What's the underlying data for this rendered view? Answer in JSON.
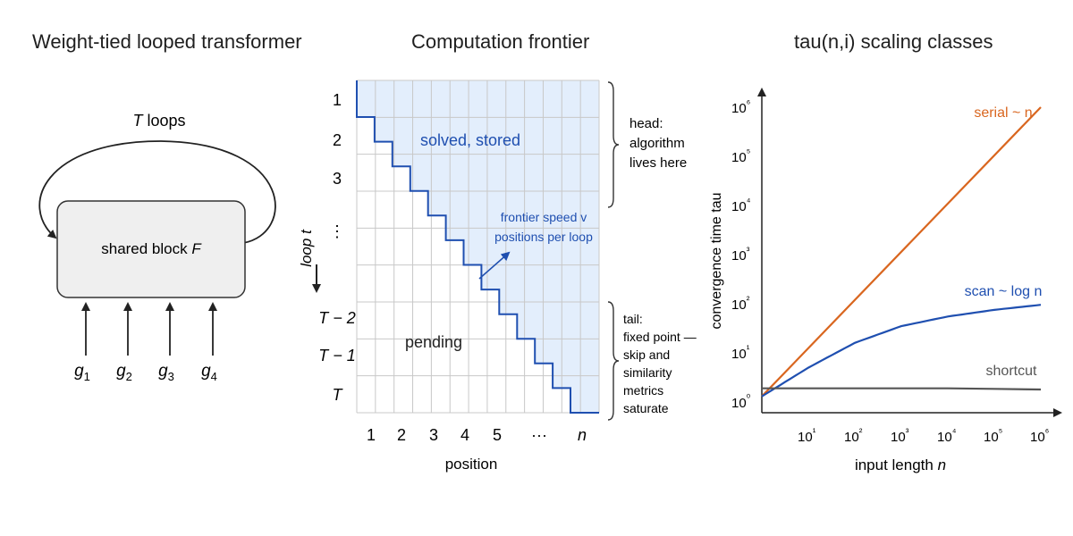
{
  "panel1": {
    "title": "Weight-tied looped transformer",
    "loop_label": "loops",
    "loop_var": "T",
    "block_label": "shared block",
    "block_var": "F",
    "inputs": [
      {
        "base": "g",
        "sub": "1"
      },
      {
        "base": "g",
        "sub": "2"
      },
      {
        "base": "g",
        "sub": "3"
      },
      {
        "base": "g",
        "sub": "4"
      }
    ]
  },
  "panel2": {
    "title": "Computation frontier",
    "solved_label": "solved, stored",
    "pending_label": "pending",
    "speed_label_line1": "frontier speed v",
    "speed_label_line2": "positions per loop",
    "row_labels": [
      "1",
      "2",
      "3",
      "⋮",
      "T − 2",
      "T − 1",
      "T"
    ],
    "col_labels": [
      "1",
      "2",
      "3",
      "4",
      "5",
      "···",
      "n"
    ],
    "y_axis_label": "loop t",
    "x_axis_label": "position",
    "head_lines": [
      "head:",
      "algorithm",
      "lives here"
    ],
    "tail_lines": [
      "tail:",
      "fixed point —",
      "skip and",
      "similarity",
      "metrics",
      "saturate"
    ],
    "colors": {
      "solved_fill": "#e3eefc",
      "frontier": "#1f4fb0",
      "grid": "#c8c8c8"
    }
  },
  "panel3": {
    "title": "tau(n,i) scaling classes",
    "chart_data": {
      "type": "line",
      "title": "tau(n,i) scaling classes",
      "xlabel": "input length n",
      "ylabel": "convergence time tau",
      "x_scale": "log",
      "y_scale": "log",
      "xlim": [
        1,
        1000000
      ],
      "ylim": [
        1,
        1000000
      ],
      "x_ticks": [
        "10¹",
        "10²",
        "10³",
        "10⁴",
        "10⁵",
        "10⁶"
      ],
      "y_ticks": [
        "10⁰",
        "10¹",
        "10²",
        "10³",
        "10⁴",
        "10⁵",
        "10⁶"
      ],
      "series": [
        {
          "name": "serial ~ n",
          "x": [
            1,
            1000000
          ],
          "y": [
            1.3,
            1000000
          ],
          "color": "#d9661f"
        },
        {
          "name": "scan ~ log n",
          "x": [
            1,
            10,
            100,
            1000,
            10000,
            100000,
            1000000
          ],
          "y": [
            1.3,
            5,
            16,
            35,
            55,
            75,
            95
          ],
          "color": "#1f4fb0"
        },
        {
          "name": "shortcut",
          "x": [
            1,
            10,
            100,
            1000,
            10000,
            100000,
            1000000
          ],
          "y": [
            1.9,
            1.9,
            1.9,
            1.9,
            1.9,
            1.85,
            1.8
          ],
          "color": "#555555"
        }
      ]
    }
  }
}
